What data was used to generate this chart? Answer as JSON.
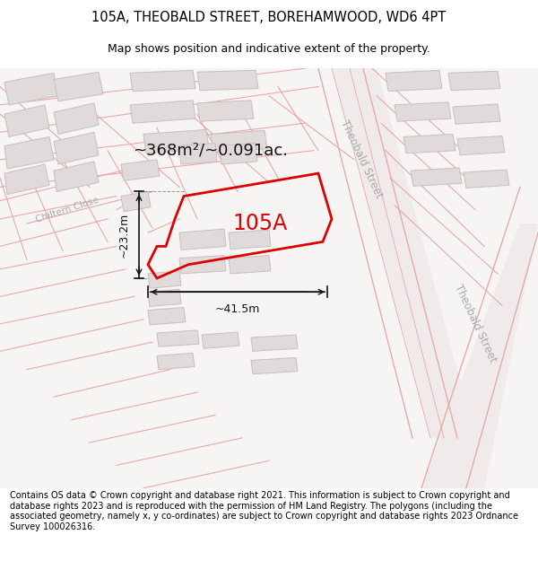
{
  "title": "105A, THEOBALD STREET, BOREHAMWOOD, WD6 4PT",
  "subtitle": "Map shows position and indicative extent of the property.",
  "footer": "Contains OS data © Crown copyright and database right 2021. This information is subject to Crown copyright and database rights 2023 and is reproduced with the permission of HM Land Registry. The polygons (including the associated geometry, namely x, y co-ordinates) are subject to Crown copyright and database rights 2023 Ordnance Survey 100026316.",
  "area_label": "~368m²/~0.091ac.",
  "property_label": "105A",
  "dim_width": "~41.5m",
  "dim_height": "~23.2m",
  "map_bg": "#f7f4f4",
  "road_line_color": "#e8a8a8",
  "building_fill": "#e0dada",
  "building_stroke": "#c8bebe",
  "property_stroke": "#dd0000",
  "road_label_color": "#aaaaaa",
  "dim_color": "#111111",
  "title_fontsize": 10.5,
  "subtitle_fontsize": 9,
  "footer_fontsize": 7.0,
  "area_fontsize": 13,
  "prop_label_fontsize": 17,
  "dim_fontsize": 9,
  "road_label_fontsize": 8.5
}
